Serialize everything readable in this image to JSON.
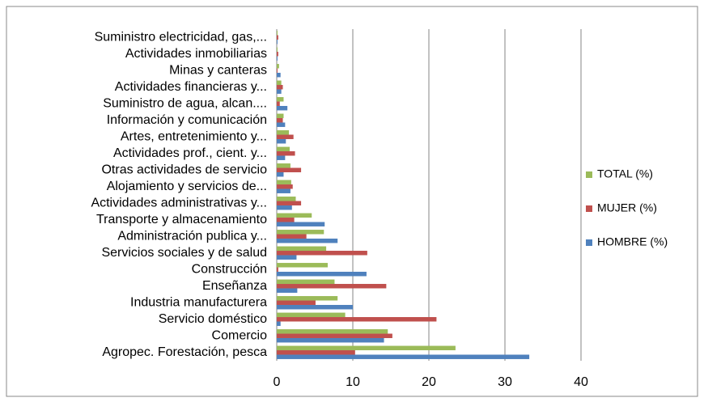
{
  "chart_data": {
    "type": "hbar",
    "categories": [
      "Agropec. Forestación, pesca",
      "Comercio",
      "Servicio doméstico",
      "Industria manufacturera",
      "Enseñanza",
      "Construcción",
      "Servicios sociales y de salud",
      "Administración publica y...",
      "Transporte y almacenamiento",
      "Actividades administrativas y...",
      "Alojamiento y servicios de...",
      "Otras actividades de servicio",
      "Actividades prof., cient. y...",
      "Artes, entretenimiento y...",
      "Información y comunicación",
      "Suministro de agua, alcan....",
      "Actividades financieras y...",
      "Minas y canteras",
      "Actividades inmobiliarias",
      "Suministro electricidad, gas,..."
    ],
    "series": [
      {
        "name": "HOMBRE (%)",
        "color": "#4f81bd",
        "values": [
          33.2,
          14.1,
          0.5,
          10.0,
          2.7,
          11.8,
          2.6,
          8.0,
          6.3,
          2.0,
          1.8,
          0.9,
          1.1,
          1.2,
          1.1,
          1.4,
          0.6,
          0.5,
          0.1,
          0.1
        ]
      },
      {
        "name": "MUJER (%)",
        "color": "#c0504d",
        "values": [
          10.3,
          15.2,
          21.0,
          5.1,
          14.4,
          0.2,
          11.9,
          3.9,
          2.3,
          3.2,
          2.1,
          3.2,
          2.4,
          2.2,
          0.8,
          0.4,
          0.8,
          0.1,
          0.2,
          0.2
        ]
      },
      {
        "name": "TOTAL (%)",
        "color": "#9bbb59",
        "values": [
          23.5,
          14.6,
          9.0,
          8.0,
          7.6,
          6.7,
          6.5,
          6.2,
          4.6,
          2.5,
          1.9,
          1.8,
          1.7,
          1.6,
          0.9,
          0.9,
          0.6,
          0.3,
          0.1,
          0.1
        ]
      }
    ],
    "xlim": [
      0,
      40
    ],
    "xticks": [
      0,
      10,
      20,
      30,
      40
    ],
    "grid": true,
    "legend": "right"
  }
}
